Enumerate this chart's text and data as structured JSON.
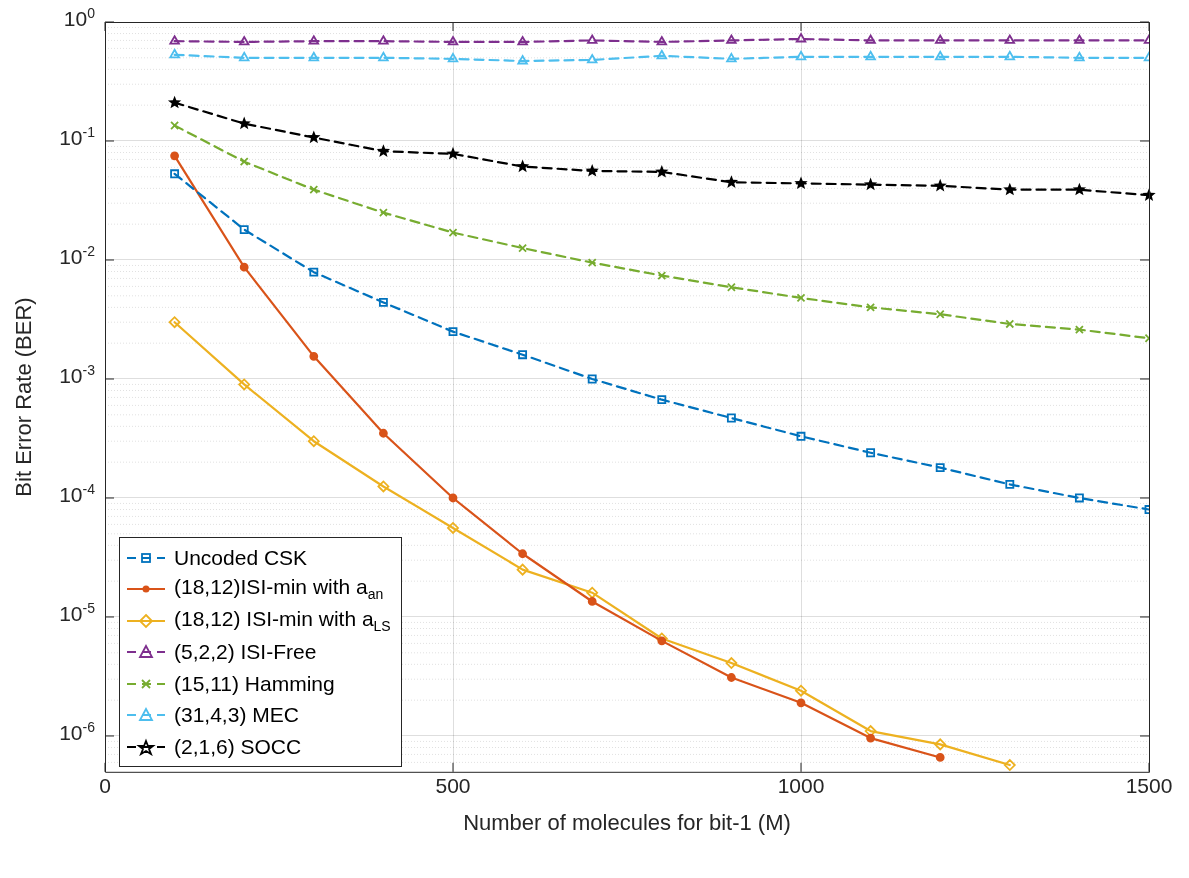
{
  "chart_data": {
    "type": "line",
    "xlabel": "Number of molecules for bit-1 (M)",
    "ylabel": "Bit Error Rate (BER)",
    "log": "y",
    "grid": true,
    "legend": "bottom left",
    "x": [
      100,
      200,
      300,
      400,
      500,
      600,
      700,
      800,
      900,
      1000,
      1100,
      1200,
      1300,
      1400,
      1500
    ],
    "xlim": [
      0,
      1500
    ],
    "xticks": [
      0,
      500,
      1000,
      1500
    ],
    "ylim": [
      5e-07,
      1
    ],
    "yticks": [
      {
        "value": 1e-06,
        "label": "10$^{-6}$"
      },
      {
        "value": 1e-05,
        "label": "10$^{-5}$"
      },
      {
        "value": 0.0001,
        "label": "10$^{-4}$"
      },
      {
        "value": 0.001,
        "label": "10$^{-3}$"
      },
      {
        "value": 0.01,
        "label": "10$^{-2}$"
      },
      {
        "value": 0.1,
        "label": "10$^{-1}$"
      },
      {
        "value": 1,
        "label": "10$^{0}$"
      }
    ],
    "series": [
      {
        "name": "Uncoded CSK",
        "color": "#0072bd",
        "marker": "square",
        "line_style": "dashed",
        "values": [
          0.053,
          0.018,
          0.0079,
          0.0044,
          0.0025,
          0.0016,
          0.001,
          0.00067,
          0.00047,
          0.00033,
          0.00024,
          0.00018,
          0.00013,
          0.0001,
          8e-05
        ]
      },
      {
        "name": "(18,12)ISI-min with a$_{an}$",
        "color": "#d95319",
        "marker": "circle",
        "line_style": "solid",
        "values": [
          0.075,
          0.0087,
          0.00155,
          0.00035,
          0.0001,
          3.4e-05,
          1.35e-05,
          6.3e-06,
          3.1e-06,
          1.9e-06,
          9.6e-07,
          6.6e-07,
          null,
          null,
          null
        ]
      },
      {
        "name": "(18,12) ISI-min with a$_{LS}$",
        "color": "#edb120",
        "marker": "diamond",
        "line_style": "solid",
        "values": [
          0.003,
          0.0009,
          0.0003,
          0.000125,
          5.6e-05,
          2.5e-05,
          1.6e-05,
          6.6e-06,
          4.1e-06,
          2.4e-06,
          1.1e-06,
          8.5e-07,
          5.7e-07,
          null,
          null
        ]
      },
      {
        "name": "(5,2,2) ISI-Free",
        "color": "#7e2f8e",
        "marker": "triangle",
        "line_style": "dashed",
        "values": [
          0.69,
          0.68,
          0.69,
          0.69,
          0.68,
          0.68,
          0.7,
          0.68,
          0.7,
          0.72,
          0.7,
          0.7,
          0.7,
          0.7,
          0.7
        ]
      },
      {
        "name": "(15,11) Hamming",
        "color": "#77ac30",
        "marker": "cross",
        "line_style": "dashed",
        "values": [
          0.135,
          0.067,
          0.039,
          0.025,
          0.017,
          0.0126,
          0.0095,
          0.0074,
          0.0059,
          0.0048,
          0.004,
          0.0035,
          0.0029,
          0.0026,
          0.0022
        ]
      },
      {
        "name": "(31,4,3) MEC",
        "color": "#4dbeee",
        "marker": "triangle",
        "line_style": "dashed",
        "values": [
          0.53,
          0.5,
          0.5,
          0.5,
          0.49,
          0.47,
          0.48,
          0.52,
          0.49,
          0.51,
          0.51,
          0.51,
          0.51,
          0.5,
          0.5
        ]
      },
      {
        "name": "(2,1,6) SOCC",
        "color": "#000000",
        "marker": "star",
        "line_style": "dashed",
        "values": [
          0.21,
          0.14,
          0.107,
          0.082,
          0.078,
          0.061,
          0.056,
          0.055,
          0.045,
          0.044,
          0.043,
          0.042,
          0.039,
          0.039,
          0.035
        ]
      }
    ]
  }
}
